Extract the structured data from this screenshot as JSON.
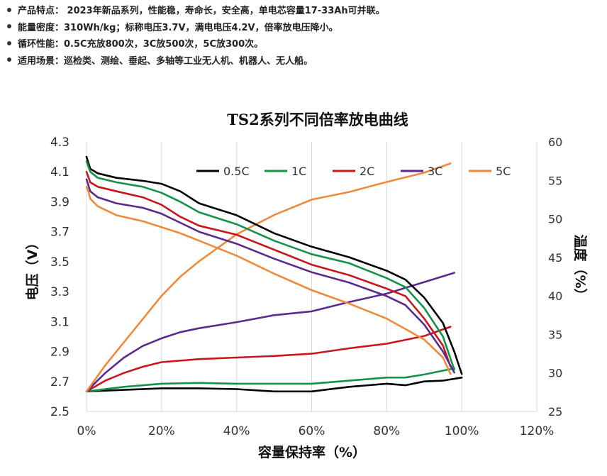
{
  "features": [
    "产品特点： 2023年新品系列，性能稳，寿命长，安全高，单电芯容量17-33Ah可并联。",
    "能量密度：310Wh/kg；标称电压3.7V，满电电压4.2V，倍率放电压降小。",
    "循环性能：0.5C充放800次，3C放500次，5C放300次。",
    "适用场景：巡检类、测绘、垂起、多轴等工业无人机、机器人、无人船。"
  ],
  "chart_data": {
    "type": "line",
    "title": "TS2系列不同倍率放电曲线",
    "xlabel": "容量保持率（%）",
    "ylabel": "电压（V）",
    "y2label": "温度（%）",
    "xlim": [
      0,
      120
    ],
    "ylim": [
      2.5,
      4.3
    ],
    "y2lim": [
      25,
      60
    ],
    "x_ticks": [
      "0%",
      "20%",
      "40%",
      "60%",
      "80%",
      "100%",
      "120%"
    ],
    "y_ticks": [
      "2.5",
      "2.7",
      "2.9",
      "3.1",
      "3.3",
      "3.5",
      "3.7",
      "3.9",
      "4.1",
      "4.3"
    ],
    "y2_ticks": [
      "25",
      "30",
      "35",
      "40",
      "45",
      "50",
      "55",
      "60"
    ],
    "grid": "vertical",
    "legend": "top",
    "series": [
      {
        "name": "0.5C",
        "color": "#000000",
        "voltage": [
          [
            0,
            4.2
          ],
          [
            1,
            4.12
          ],
          [
            3,
            4.09
          ],
          [
            8,
            4.06
          ],
          [
            15,
            4.04
          ],
          [
            20,
            4.02
          ],
          [
            25,
            3.97
          ],
          [
            30,
            3.89
          ],
          [
            40,
            3.81
          ],
          [
            50,
            3.69
          ],
          [
            60,
            3.6
          ],
          [
            70,
            3.53
          ],
          [
            80,
            3.44
          ],
          [
            85,
            3.38
          ],
          [
            90,
            3.26
          ],
          [
            95,
            3.09
          ],
          [
            98,
            2.9
          ],
          [
            100,
            2.75
          ]
        ],
        "temperature": [
          [
            0,
            27.6
          ],
          [
            10,
            27.8
          ],
          [
            20,
            28.0
          ],
          [
            30,
            28.0
          ],
          [
            40,
            27.9
          ],
          [
            50,
            27.6
          ],
          [
            60,
            27.6
          ],
          [
            70,
            28.2
          ],
          [
            80,
            28.6
          ],
          [
            85,
            28.4
          ],
          [
            90,
            28.9
          ],
          [
            95,
            29.0
          ],
          [
            100,
            29.4
          ]
        ]
      },
      {
        "name": "1C",
        "color": "#13934A",
        "voltage": [
          [
            0,
            4.17
          ],
          [
            1,
            4.1
          ],
          [
            3,
            4.06
          ],
          [
            8,
            4.03
          ],
          [
            15,
            4.0
          ],
          [
            20,
            3.96
          ],
          [
            25,
            3.9
          ],
          [
            30,
            3.83
          ],
          [
            40,
            3.75
          ],
          [
            50,
            3.64
          ],
          [
            60,
            3.55
          ],
          [
            70,
            3.49
          ],
          [
            80,
            3.39
          ],
          [
            85,
            3.33
          ],
          [
            90,
            3.19
          ],
          [
            95,
            3.0
          ],
          [
            98,
            2.78
          ]
        ],
        "temperature": [
          [
            0,
            27.6
          ],
          [
            10,
            28.2
          ],
          [
            20,
            28.6
          ],
          [
            30,
            28.7
          ],
          [
            40,
            28.6
          ],
          [
            50,
            28.6
          ],
          [
            60,
            28.6
          ],
          [
            70,
            29.0
          ],
          [
            80,
            29.4
          ],
          [
            85,
            29.4
          ],
          [
            90,
            29.8
          ],
          [
            95,
            30.3
          ],
          [
            98,
            30.6
          ]
        ]
      },
      {
        "name": "2C",
        "color": "#C8161E",
        "voltage": [
          [
            0,
            4.1
          ],
          [
            1,
            4.03
          ],
          [
            3,
            4.0
          ],
          [
            8,
            3.97
          ],
          [
            15,
            3.93
          ],
          [
            20,
            3.88
          ],
          [
            25,
            3.8
          ],
          [
            30,
            3.74
          ],
          [
            40,
            3.68
          ],
          [
            50,
            3.58
          ],
          [
            60,
            3.48
          ],
          [
            70,
            3.41
          ],
          [
            80,
            3.32
          ],
          [
            85,
            3.27
          ],
          [
            90,
            3.12
          ],
          [
            95,
            2.94
          ],
          [
            97,
            2.8
          ]
        ],
        "temperature": [
          [
            0,
            27.6
          ],
          [
            5,
            29.0
          ],
          [
            10,
            30.0
          ],
          [
            15,
            30.8
          ],
          [
            20,
            31.4
          ],
          [
            30,
            31.8
          ],
          [
            40,
            32.0
          ],
          [
            50,
            32.2
          ],
          [
            60,
            32.5
          ],
          [
            70,
            33.2
          ],
          [
            80,
            33.8
          ],
          [
            90,
            34.8
          ],
          [
            97,
            36.0
          ]
        ]
      },
      {
        "name": "3C",
        "color": "#5B2A8C",
        "voltage": [
          [
            0,
            4.05
          ],
          [
            1,
            3.97
          ],
          [
            3,
            3.93
          ],
          [
            8,
            3.89
          ],
          [
            15,
            3.86
          ],
          [
            20,
            3.82
          ],
          [
            25,
            3.76
          ],
          [
            30,
            3.7
          ],
          [
            40,
            3.62
          ],
          [
            50,
            3.52
          ],
          [
            60,
            3.43
          ],
          [
            70,
            3.36
          ],
          [
            80,
            3.27
          ],
          [
            85,
            3.21
          ],
          [
            90,
            3.08
          ],
          [
            95,
            2.9
          ],
          [
            98,
            2.76
          ]
        ],
        "temperature": [
          [
            0,
            27.6
          ],
          [
            5,
            30.0
          ],
          [
            10,
            32.0
          ],
          [
            15,
            33.5
          ],
          [
            20,
            34.5
          ],
          [
            25,
            35.3
          ],
          [
            30,
            35.8
          ],
          [
            40,
            36.6
          ],
          [
            50,
            37.5
          ],
          [
            60,
            38.0
          ],
          [
            70,
            39.2
          ],
          [
            80,
            40.3
          ],
          [
            90,
            41.8
          ],
          [
            98,
            43.0
          ]
        ]
      },
      {
        "name": "5C",
        "color": "#EE8A3C",
        "voltage": [
          [
            0,
            4.0
          ],
          [
            0.5,
            3.97
          ],
          [
            1,
            3.92
          ],
          [
            3,
            3.87
          ],
          [
            8,
            3.81
          ],
          [
            15,
            3.77
          ],
          [
            20,
            3.73
          ],
          [
            25,
            3.69
          ],
          [
            30,
            3.64
          ],
          [
            40,
            3.54
          ],
          [
            50,
            3.42
          ],
          [
            60,
            3.31
          ],
          [
            70,
            3.22
          ],
          [
            80,
            3.12
          ],
          [
            85,
            3.05
          ],
          [
            90,
            2.98
          ],
          [
            95,
            2.86
          ],
          [
            97,
            2.75
          ]
        ],
        "temperature": [
          [
            0,
            27.6
          ],
          [
            5,
            31.0
          ],
          [
            10,
            34.0
          ],
          [
            15,
            37.0
          ],
          [
            20,
            40.0
          ],
          [
            25,
            42.5
          ],
          [
            30,
            44.5
          ],
          [
            40,
            48.0
          ],
          [
            50,
            50.5
          ],
          [
            60,
            52.5
          ],
          [
            70,
            53.5
          ],
          [
            80,
            54.8
          ],
          [
            90,
            56.0
          ],
          [
            97,
            57.2
          ]
        ]
      }
    ]
  }
}
